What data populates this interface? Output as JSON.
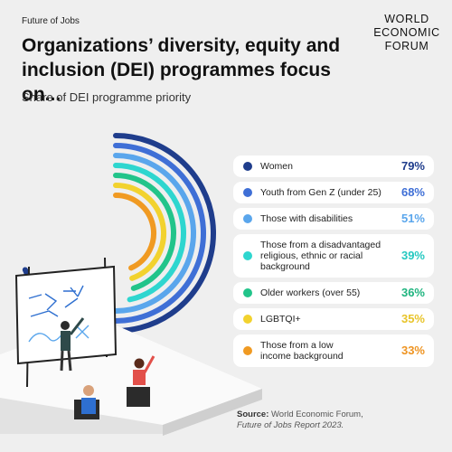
{
  "header": {
    "kicker": "Future of Jobs",
    "title_line1": "Organizations’ diversity, equity and",
    "title_line2": "inclusion (DEI) programmes focus on...",
    "subtitle": "Share of DEI programme priority"
  },
  "logo": {
    "line1": "WORLD",
    "line2": "ECONOMIC",
    "line3": "FORUM"
  },
  "chart_data": {
    "type": "bar",
    "categories": [
      "Women",
      "Youth from Gen Z (under 25)",
      "Those with disabilities",
      "Those from a disadvantaged religious, ethnic or racial background",
      "Older workers (over 55)",
      "LGBTQI+",
      "Those from a low income background"
    ],
    "values": [
      79,
      68,
      51,
      39,
      36,
      35,
      33
    ],
    "labels": [
      "79%",
      "68%",
      "51%",
      "39%",
      "36%",
      "35%",
      "33%"
    ],
    "colors": [
      "#1f3d8c",
      "#3f6fd6",
      "#5aa6ec",
      "#2ed6cf",
      "#22c48a",
      "#f2d22e",
      "#f09a22"
    ],
    "label_colors": [
      "#1f3d8c",
      "#3f6fd6",
      "#5aa6ec",
      "#25c8c0",
      "#1fb47f",
      "#e8c42a",
      "#ee9422"
    ],
    "unit": "%",
    "display": "concentric-arcs"
  },
  "legend_rows": [
    {
      "label_lines": [
        "Women"
      ]
    },
    {
      "label_lines": [
        "Youth from Gen Z (under 25)"
      ]
    },
    {
      "label_lines": [
        "Those with disabilities"
      ]
    },
    {
      "label_lines": [
        "Those from a disadvantaged",
        "religious, ethnic or racial",
        "background"
      ]
    },
    {
      "label_lines": [
        "Older workers (over 55)"
      ]
    },
    {
      "label_lines": [
        "LGBTQI+"
      ]
    },
    {
      "label_lines": [
        "Those from a low",
        "income background"
      ]
    }
  ],
  "source": {
    "label": "Source:",
    "text": "World Economic Forum,",
    "report": "Future of Jobs Report 2023."
  }
}
